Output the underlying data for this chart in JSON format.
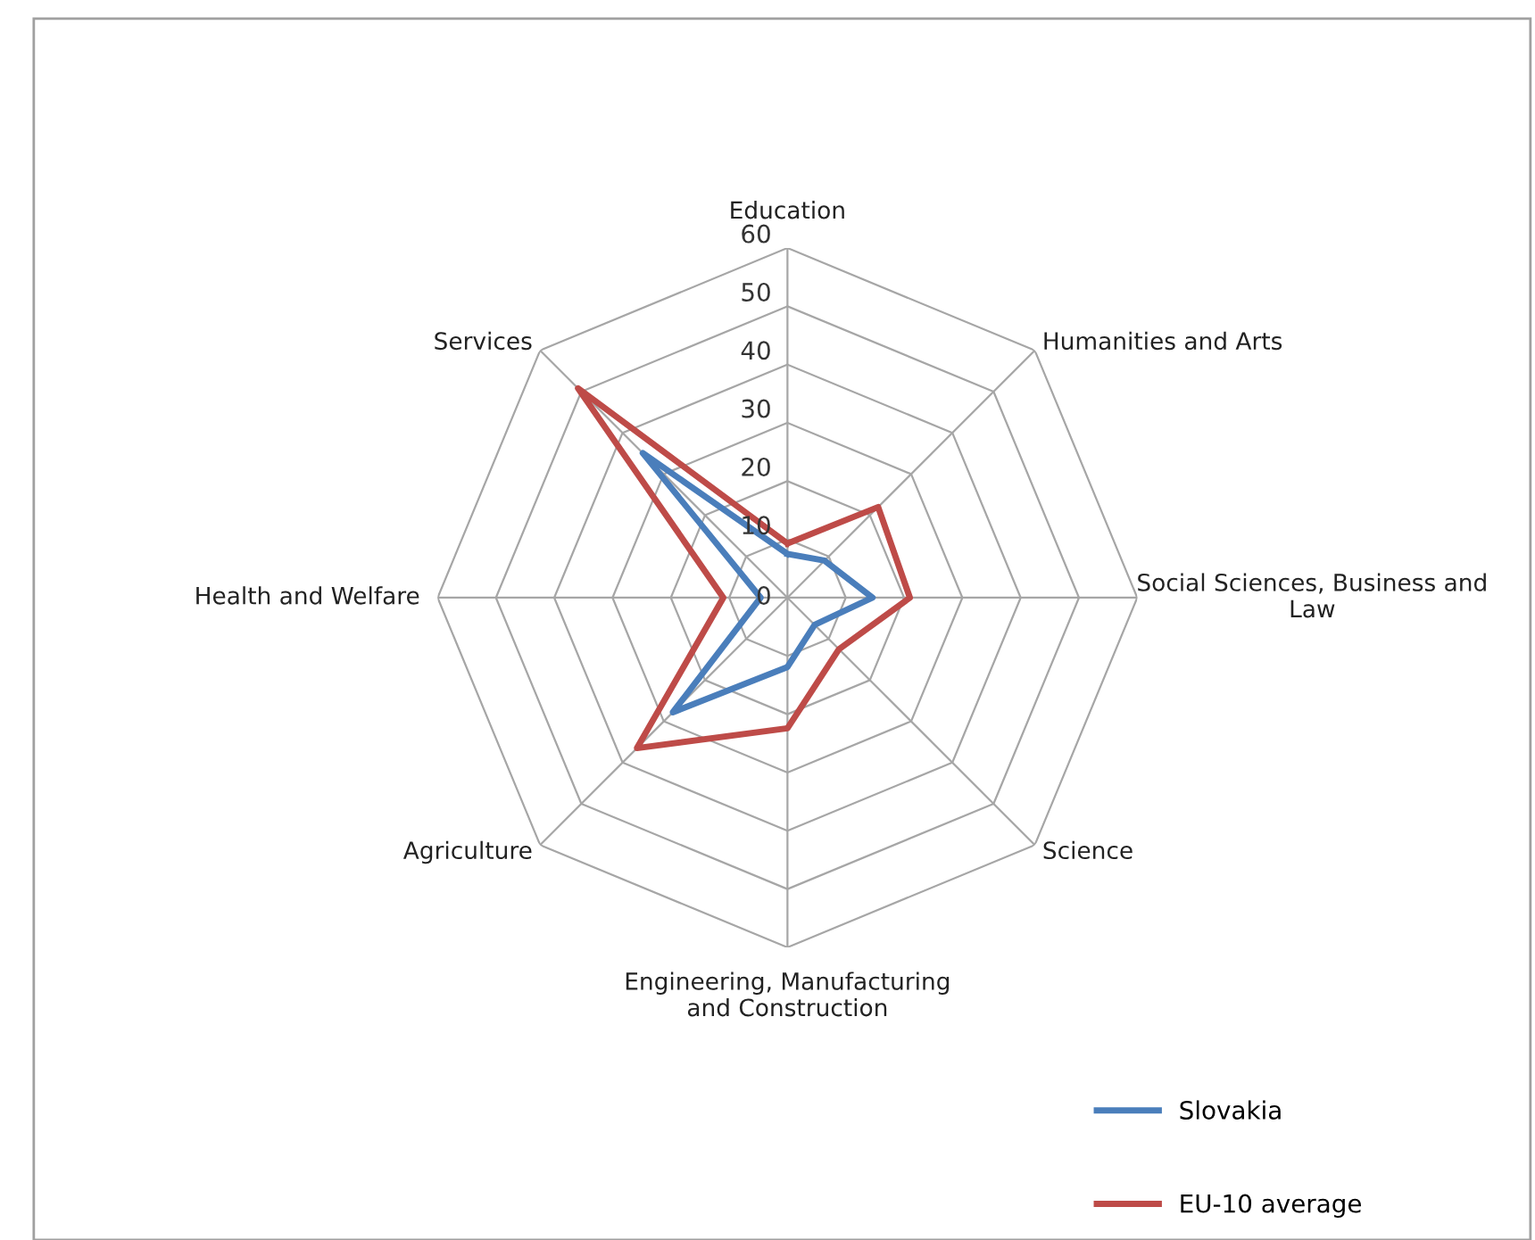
{
  "chart_data": {
    "type": "radar",
    "categories": [
      "Education",
      "Humanities and Arts",
      "Social Sciences, Business and\nLaw",
      "Science",
      "Engineering, Manufacturing\nand Construction",
      "Agriculture",
      "Health and Welfare",
      "Services"
    ],
    "series": [
      {
        "name": "Slovakia",
        "color": "#4a7ebb",
        "values": [
          7.5,
          9,
          14.6,
          6.6,
          11.9,
          27.8,
          4.6,
          35.1
        ]
      },
      {
        "name": "EU-10 average",
        "color": "#be4b48",
        "values": [
          9.3,
          22,
          21,
          12.5,
          22.4,
          36.5,
          11,
          50.8
        ]
      }
    ],
    "ylim": [
      0,
      60
    ],
    "yticks": [
      0,
      10,
      20,
      30,
      40,
      50,
      60
    ],
    "grid": true,
    "legend": "right",
    "marker": "none"
  }
}
